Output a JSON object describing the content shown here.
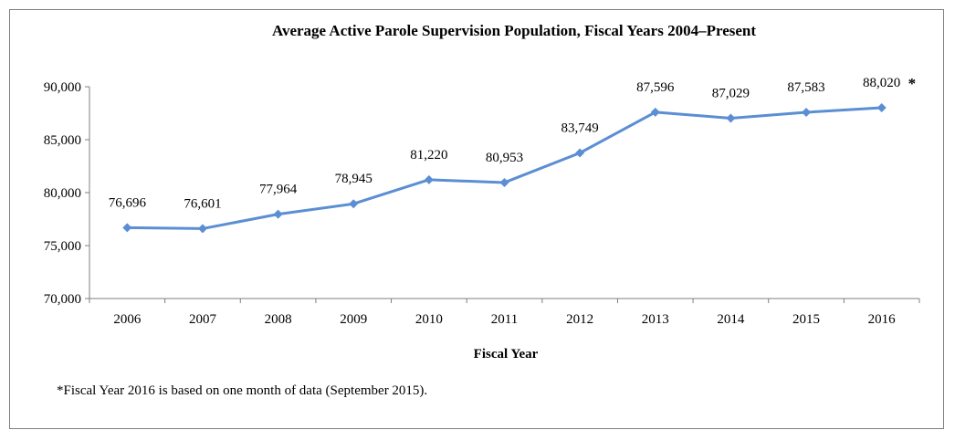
{
  "chart_data": {
    "type": "line",
    "title": "Average Active Parole Supervision Population, Fiscal Years 2004–Present",
    "xlabel": "Fiscal Year",
    "ylabel": "",
    "ylim": [
      70000,
      90000
    ],
    "yticks": [
      70000,
      75000,
      80000,
      85000,
      90000
    ],
    "ytick_labels": [
      "70,000",
      "75,000",
      "80,000",
      "85,000",
      "90,000"
    ],
    "categories": [
      "2006",
      "2007",
      "2008",
      "2009",
      "2010",
      "2011",
      "2012",
      "2013",
      "2014",
      "2015",
      "2016"
    ],
    "series": [
      {
        "values": [
          76696,
          76601,
          77964,
          78945,
          81220,
          80953,
          83749,
          87596,
          87029,
          87583,
          88020
        ],
        "labels": [
          "76,696",
          "76,601",
          "77,964",
          "78,945",
          "81,220",
          "80,953",
          "83,749",
          "87,596",
          "87,029",
          "87,583",
          "88,020"
        ],
        "color": "#5b8ed3"
      }
    ],
    "annotation_marker": "*",
    "grid": false,
    "legend": "none",
    "footnote": "*Fiscal Year 2016 is based on one month of data (September 2015)."
  }
}
